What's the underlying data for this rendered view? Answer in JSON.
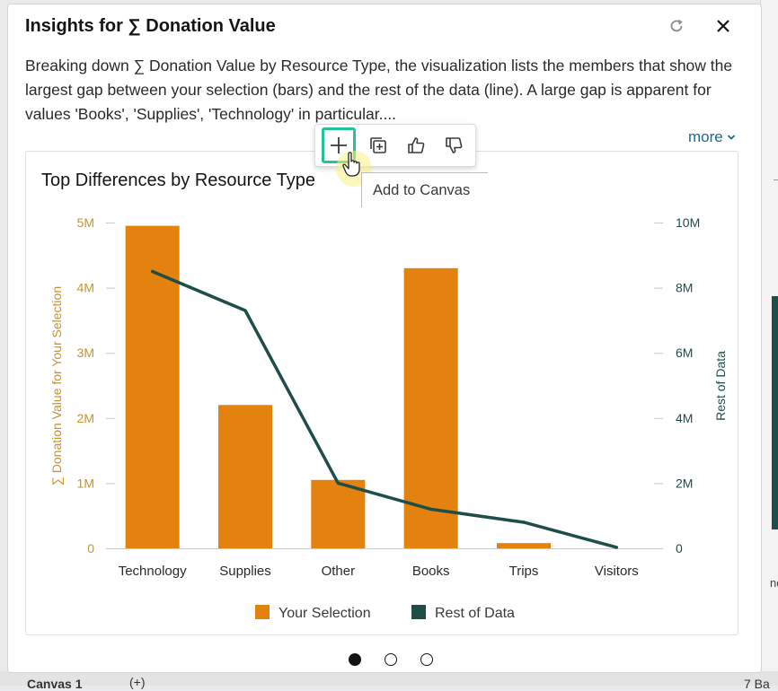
{
  "panel": {
    "title": "Insights for ∑ Donation Value",
    "description": "Breaking down ∑ Donation Value by Resource Type, the visualization lists the members that show the largest gap between your selection (bars) and the rest of the data (line). A large gap is apparent for values 'Books', 'Supplies', 'Technology' in particular....",
    "more_label": "more",
    "refresh_icon": "refresh-icon",
    "close_icon": "close-icon"
  },
  "toolbar": {
    "add_icon": "plus-icon",
    "duplicate_icon": "duplicate-icon",
    "like_icon": "thumbs-up-icon",
    "dislike_icon": "thumbs-down-icon",
    "tooltip": "Add to Canvas",
    "highlight_color": "#27c29c"
  },
  "pager": {
    "count": 3,
    "active_index": 0
  },
  "background": {
    "canvas_tab": "Canvas 1",
    "add_tab": "(+)",
    "bars_label": "7 Ba"
  },
  "chart_data": {
    "type": "bar+line",
    "title": "Top Differences by Resource Type",
    "categories": [
      "Technology",
      "Supplies",
      "Other",
      "Books",
      "Trips",
      "Visitors"
    ],
    "series": [
      {
        "name": "Your Selection",
        "kind": "bar",
        "axis": "left",
        "color": "#e3820f",
        "values": [
          4950000,
          2200000,
          1050000,
          4300000,
          80000,
          0
        ]
      },
      {
        "name": "Rest of Data",
        "kind": "line",
        "axis": "right",
        "color": "#1f4e4a",
        "values": [
          8500000,
          7300000,
          2000000,
          1200000,
          800000,
          30000
        ]
      }
    ],
    "y_left": {
      "label": "∑ Donation Value for Your Selection",
      "range": [
        0,
        5000000
      ],
      "ticks": [
        "0",
        "1M",
        "2M",
        "3M",
        "4M",
        "5M"
      ],
      "color": "#c8922a"
    },
    "y_right": {
      "label": "Rest of Data",
      "range": [
        0,
        10000000
      ],
      "ticks": [
        "0",
        "2M",
        "4M",
        "6M",
        "8M",
        "10M"
      ],
      "color": "#1f4e4a"
    },
    "legend_position": "bottom",
    "grid": false
  }
}
